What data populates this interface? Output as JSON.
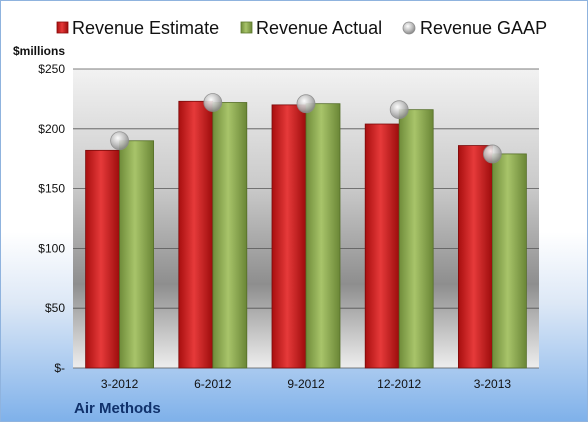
{
  "chart_data": {
    "type": "bar",
    "categories": [
      "3-2012",
      "6-2012",
      "9-2012",
      "12-2012",
      "3-2013"
    ],
    "series": [
      {
        "name": "Revenue Estimate",
        "kind": "bar",
        "color": "#cc1f1f",
        "values": [
          182,
          223,
          220,
          204,
          186
        ]
      },
      {
        "name": "Revenue Actual",
        "kind": "bar",
        "color": "#8caa4e",
        "values": [
          190,
          222,
          221,
          216,
          179
        ]
      },
      {
        "name": "Revenue GAAP",
        "kind": "marker",
        "color": "#b8b8b8",
        "values": [
          190,
          222,
          221,
          216,
          179
        ]
      }
    ],
    "ylabel": "$millions",
    "ylim": [
      0,
      250
    ],
    "yticks": [
      0,
      50,
      100,
      150,
      200,
      250
    ],
    "ytick_labels": [
      "$-",
      "$50",
      "$100",
      "$150",
      "$200",
      "$250"
    ],
    "grid": true,
    "legend_position": "top",
    "company": "Air Methods"
  }
}
